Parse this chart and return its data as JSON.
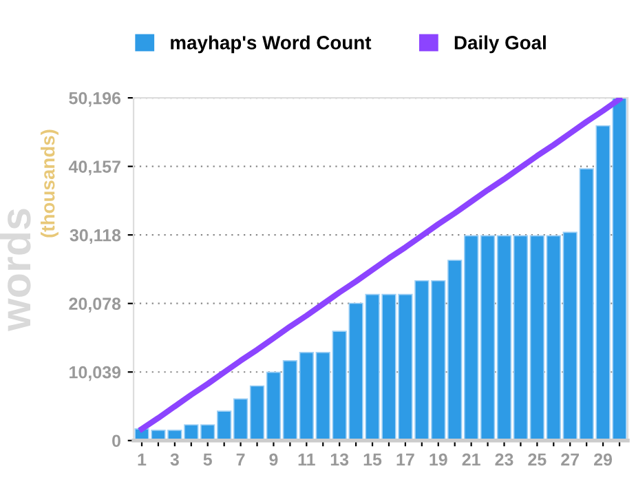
{
  "chart_data": {
    "type": "bar",
    "ylabel": "words",
    "annotations": [
      "(thousands)"
    ],
    "categories": [
      "1",
      null,
      "3",
      null,
      "5",
      null,
      "7",
      null,
      "9",
      null,
      "11",
      null,
      "13",
      null,
      "15",
      null,
      "17",
      null,
      "19",
      null,
      "21",
      null,
      "23",
      null,
      "25",
      null,
      "27",
      null,
      "29",
      null
    ],
    "series": [
      {
        "name": "mayhap's Word Count",
        "color": "#2e9be6",
        "values": [
          1700,
          1500,
          1500,
          2300,
          2300,
          4300,
          6100,
          8000,
          10000,
          11700,
          12900,
          12900,
          16000,
          20100,
          21400,
          21400,
          21400,
          23400,
          23400,
          26400,
          30000,
          30000,
          30000,
          30000,
          30000,
          30000,
          30500,
          39800,
          46100,
          50196
        ]
      },
      {
        "name": "Daily Goal",
        "type": "line",
        "color": "#8c44ff",
        "values": [
          1700,
          3300,
          5000,
          6700,
          8300,
          10000,
          11700,
          13300,
          15000,
          16700,
          18300,
          20000,
          21700,
          23300,
          25000,
          26700,
          28300,
          30000,
          31700,
          33300,
          35000,
          36700,
          38300,
          40000,
          41700,
          43300,
          45000,
          46700,
          48300,
          50000
        ]
      }
    ],
    "ylim": [
      0,
      50196
    ],
    "yticks": [
      0,
      {
        "value": 10039,
        "label": "10,039"
      },
      {
        "value": 20078,
        "label": "20,078"
      },
      {
        "value": 30118,
        "label": "30,118"
      },
      {
        "value": 40157,
        "label": "40,157"
      },
      {
        "value": 50196,
        "label": "50,196"
      }
    ],
    "grid": "y",
    "legend": "top",
    "line_style": "solid",
    "marker": "none"
  }
}
